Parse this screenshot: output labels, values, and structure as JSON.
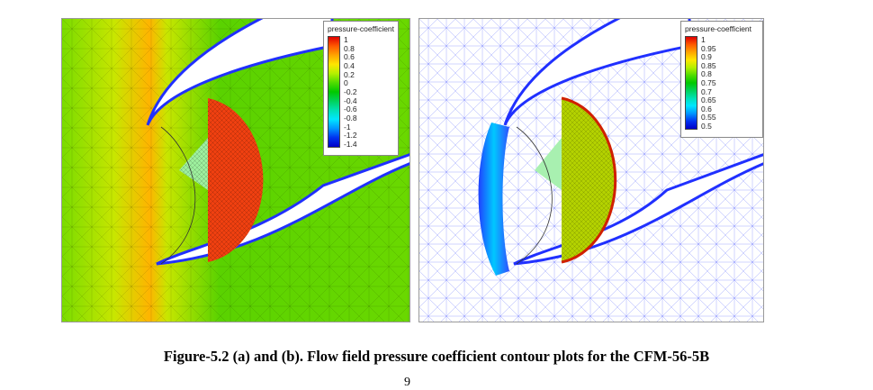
{
  "figure_a": {
    "legend_title": "pressure-coefficient",
    "legend_labels": [
      "1",
      "0.8",
      "0.6",
      "0.4",
      "0.2",
      "0",
      "-0.2",
      "-0.4",
      "-0.6",
      "-0.8",
      "-1",
      "-1.2",
      "-1.4"
    ]
  },
  "figure_b": {
    "legend_title": "pressure-coefficient",
    "legend_labels": [
      "1",
      "0.95",
      "0.9",
      "0.85",
      "0.8",
      "0.75",
      "0.7",
      "0.65",
      "0.6",
      "0.55",
      "0.5"
    ]
  },
  "colormap": [
    "#e00000",
    "#ff5a00",
    "#ffa500",
    "#ffe600",
    "#b4f000",
    "#50dc00",
    "#00c800",
    "#00d25a",
    "#00e1b4",
    "#00e6ff",
    "#0096ff",
    "#0032f0",
    "#0000c8"
  ],
  "caption": "Figure-5.2 (a) and (b). Flow field pressure coefficient contour plots for the CFM-56-5B",
  "page_number": "9"
}
